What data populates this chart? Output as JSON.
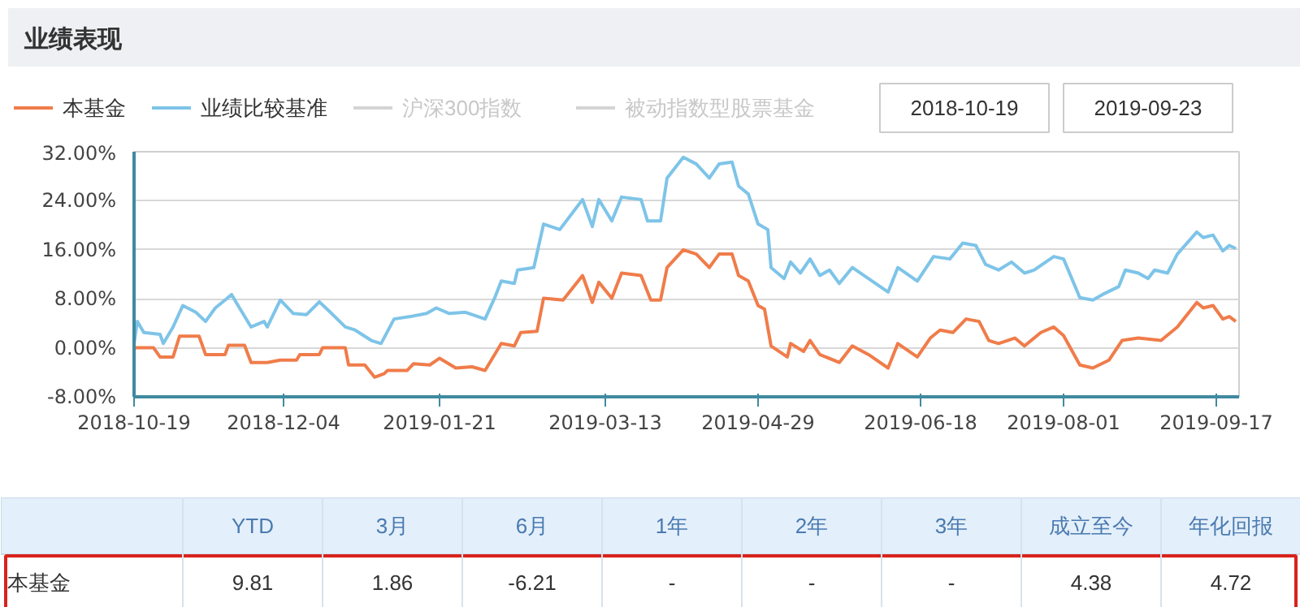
{
  "chart_data": [
    {
      "type": "line",
      "title": "业绩表现",
      "xlim": [
        "2018-10-19",
        "2019-09-24"
      ],
      "ylim": [
        -8,
        32
      ],
      "xticks": [
        "2018-10-19",
        "2018-12-04",
        "2019-01-21",
        "2019-03-13",
        "2019-04-29",
        "2019-06-18",
        "2019-08-01",
        "2019-09-17"
      ],
      "yticks": [
        {
          "value": 32,
          "label": "32.00%"
        },
        {
          "value": 24,
          "label": "24.00%"
        },
        {
          "value": 16,
          "label": "16.00%"
        },
        {
          "value": 8,
          "label": "8.00%"
        },
        {
          "value": 0,
          "label": "0.00%"
        },
        {
          "value": -8,
          "label": "-8.00%"
        }
      ],
      "grid": "y",
      "legend": "top",
      "line_style": "solid",
      "annotations": [
        "2018-10-19",
        "2019-09-23"
      ],
      "series": [
        {
          "name": "本基金",
          "color": "#f07c4a",
          "x": [
            "2018-10-19",
            "2018-10-25",
            "2018-10-27",
            "2018-10-31",
            "2018-11-02",
            "2018-11-08",
            "2018-11-10",
            "2018-11-16",
            "2018-11-17",
            "2018-11-22",
            "2018-11-24",
            "2018-11-29",
            "2018-12-03",
            "2018-12-08",
            "2018-12-09",
            "2018-12-15",
            "2018-12-16",
            "2018-12-23",
            "2018-12-24",
            "2018-12-29",
            "2019-01-01",
            "2019-01-04",
            "2019-01-05",
            "2019-01-11",
            "2019-01-13",
            "2019-01-18",
            "2019-01-21",
            "2019-01-26",
            "2019-01-31",
            "2019-02-04",
            "2019-02-09",
            "2019-02-13",
            "2019-02-15",
            "2019-02-20",
            "2019-02-22",
            "2019-02-28",
            "2019-03-06",
            "2019-03-09",
            "2019-03-11",
            "2019-03-15",
            "2019-03-18",
            "2019-03-24",
            "2019-03-27",
            "2019-03-30",
            "2019-04-01",
            "2019-04-06",
            "2019-04-10",
            "2019-04-14",
            "2019-04-17",
            "2019-04-21",
            "2019-04-23",
            "2019-04-26",
            "2019-04-29",
            "2019-05-01",
            "2019-05-03",
            "2019-05-08",
            "2019-05-09",
            "2019-05-13",
            "2019-05-15",
            "2019-05-18",
            "2019-05-24",
            "2019-05-28",
            "2019-06-02",
            "2019-06-08",
            "2019-06-11",
            "2019-06-17",
            "2019-06-21",
            "2019-06-24",
            "2019-06-28",
            "2019-07-02",
            "2019-07-06",
            "2019-07-09",
            "2019-07-12",
            "2019-07-17",
            "2019-07-20",
            "2019-07-25",
            "2019-07-29",
            "2019-08-01",
            "2019-08-06",
            "2019-08-10",
            "2019-08-15",
            "2019-08-19",
            "2019-08-24",
            "2019-08-31",
            "2019-09-05",
            "2019-09-11",
            "2019-09-13",
            "2019-09-16",
            "2019-09-19",
            "2019-09-21",
            "2019-09-23"
          ],
          "values": [
            0,
            0,
            -1.5,
            -1.5,
            1.9,
            1.9,
            -1.1,
            -1.1,
            0.4,
            0.4,
            -2.4,
            -2.4,
            -2,
            -2,
            -1.1,
            -1.1,
            0,
            0,
            -2.8,
            -2.8,
            -4.8,
            -4.2,
            -3.7,
            -3.7,
            -2.6,
            -2.8,
            -1.7,
            -3.3,
            -3.1,
            -3.7,
            0.7,
            0.3,
            2.5,
            2.7,
            8.1,
            7.8,
            11.8,
            7.4,
            10.7,
            8.1,
            12.2,
            11.8,
            7.8,
            7.8,
            13.1,
            16,
            15.3,
            13.1,
            15.3,
            15.3,
            11.8,
            10.9,
            6.9,
            6.3,
            0.3,
            -1.5,
            0.7,
            -0.6,
            1.2,
            -1.1,
            -2.4,
            0.3,
            -1.1,
            -3.3,
            0.7,
            -1.5,
            1.6,
            2.9,
            2.5,
            4.7,
            4.3,
            1.2,
            0.7,
            1.6,
            0.3,
            2.5,
            3.4,
            2,
            -2.8,
            -3.3,
            -2,
            1.2,
            1.6,
            1.2,
            3.4,
            7.4,
            6.5,
            6.9,
            4.7,
            5.1,
            4.3
          ]
        },
        {
          "name": "业绩比较基准",
          "color": "#7ec4e8",
          "x": [
            "2018-10-19",
            "2018-10-20",
            "2018-10-22",
            "2018-10-27",
            "2018-10-28",
            "2018-10-31",
            "2018-11-03",
            "2018-11-07",
            "2018-11-10",
            "2018-11-13",
            "2018-11-16",
            "2018-11-18",
            "2018-11-20",
            "2018-11-24",
            "2018-11-28",
            "2018-11-29",
            "2018-12-03",
            "2018-12-07",
            "2018-12-11",
            "2018-12-15",
            "2018-12-18",
            "2018-12-23",
            "2018-12-26",
            "2018-12-31",
            "2019-01-03",
            "2019-01-07",
            "2019-01-12",
            "2019-01-17",
            "2019-01-20",
            "2019-01-24",
            "2019-01-29",
            "2019-02-04",
            "2019-02-07",
            "2019-02-09",
            "2019-02-13",
            "2019-02-14",
            "2019-02-19",
            "2019-02-22",
            "2019-02-27",
            "2019-03-06",
            "2019-03-09",
            "2019-03-11",
            "2019-03-15",
            "2019-03-18",
            "2019-03-24",
            "2019-03-26",
            "2019-03-30",
            "2019-04-01",
            "2019-04-06",
            "2019-04-10",
            "2019-04-14",
            "2019-04-17",
            "2019-04-21",
            "2019-04-23",
            "2019-04-26",
            "2019-04-29",
            "2019-05-02",
            "2019-05-03",
            "2019-05-07",
            "2019-05-09",
            "2019-05-12",
            "2019-05-15",
            "2019-05-18",
            "2019-05-21",
            "2019-05-24",
            "2019-05-28",
            "2019-06-02",
            "2019-06-08",
            "2019-06-11",
            "2019-06-17",
            "2019-06-22",
            "2019-06-27",
            "2019-07-01",
            "2019-07-05",
            "2019-07-08",
            "2019-07-12",
            "2019-07-16",
            "2019-07-20",
            "2019-07-23",
            "2019-07-29",
            "2019-08-01",
            "2019-08-06",
            "2019-08-10",
            "2019-08-13",
            "2019-08-18",
            "2019-08-20",
            "2019-08-24",
            "2019-08-27",
            "2019-08-29",
            "2019-09-02",
            "2019-09-05",
            "2019-09-11",
            "2019-09-13",
            "2019-09-16",
            "2019-09-19",
            "2019-09-21",
            "2019-09-23"
          ],
          "values": [
            0.7,
            4.3,
            2.5,
            2.2,
            0.7,
            3.4,
            6.9,
            5.8,
            4.3,
            6.5,
            7.8,
            8.7,
            6.9,
            3.4,
            4.3,
            3.4,
            7.8,
            5.6,
            5.4,
            7.5,
            6.0,
            3.4,
            2.9,
            1.2,
            0.7,
            4.7,
            5.1,
            5.6,
            6.5,
            5.6,
            5.8,
            4.7,
            8.2,
            10.9,
            10.5,
            12.7,
            13.1,
            20.2,
            19.3,
            24.2,
            19.8,
            24.2,
            20.7,
            24.6,
            24.2,
            20.7,
            20.7,
            27.7,
            31.1,
            30,
            27.7,
            30,
            30.3,
            26.4,
            25.1,
            20.2,
            19.3,
            13.1,
            11.3,
            14,
            12.2,
            14.5,
            11.8,
            12.7,
            10.5,
            13.1,
            11.3,
            9.1,
            13.1,
            10.9,
            14.9,
            14.5,
            17.1,
            16.7,
            13.6,
            12.7,
            14,
            12.2,
            12.7,
            14.9,
            14.5,
            8.2,
            7.8,
            8.7,
            10,
            12.7,
            12.2,
            11.3,
            12.7,
            12.2,
            15.3,
            18.9,
            18,
            18.4,
            15.8,
            16.7,
            16.2
          ]
        },
        {
          "name": "沪深300指数",
          "color": "#d4d4d4"
        },
        {
          "name": "被动指数型股票基金",
          "color": "#d4d4d4"
        }
      ]
    },
    {
      "type": "other",
      "categories": [
        "YTD",
        "3月",
        "6月",
        "1年",
        "2年",
        "3年",
        "成立至今",
        "年化回报"
      ],
      "y_categories": [
        "本基金"
      ],
      "cell_labels": [
        [
          "9.81",
          "1.86",
          "-6.21",
          "-",
          "-",
          "-",
          "4.38",
          "4.72"
        ]
      ]
    }
  ]
}
